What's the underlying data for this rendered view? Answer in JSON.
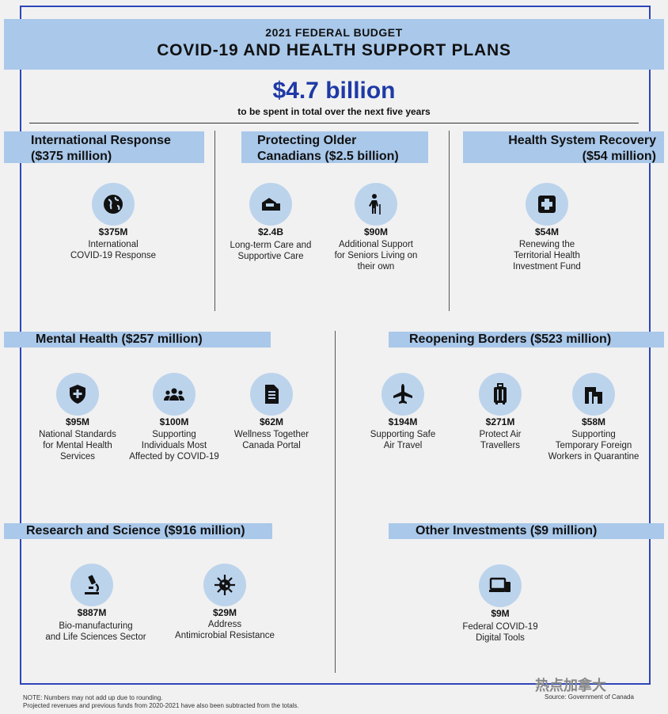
{
  "header": {
    "subtitle": "2021 FEDERAL BUDGET",
    "title": "COVID-19 AND HEALTH SUPPORT PLANS"
  },
  "total": {
    "amount": "$4.7 billion",
    "caption": "to be spent in total over the next five years"
  },
  "sections": {
    "international": {
      "line1": "International Response",
      "line2": "($375 million)",
      "items": [
        {
          "icon": "globe-icon",
          "amount": "$375M",
          "lines": [
            "International",
            "COVID-19 Response"
          ]
        }
      ]
    },
    "older": {
      "line1": "Protecting Older",
      "line2": "Canadians ($2.5 billion)",
      "items": [
        {
          "icon": "house-icon",
          "amount": "$2.4B",
          "lines": [
            "Long-term Care and",
            "Supportive Care"
          ]
        },
        {
          "icon": "elderly-person-icon",
          "amount": "$90M",
          "lines": [
            "Additional Support",
            "for Seniors Living on",
            "their own"
          ]
        }
      ]
    },
    "health_system": {
      "line1": "Health System Recovery",
      "line2": "($54 million)",
      "items": [
        {
          "icon": "medical-cross-icon",
          "amount": "$54M",
          "lines": [
            "Renewing the",
            "Territorial Health",
            "Investment Fund"
          ]
        }
      ]
    },
    "mental": {
      "title": "Mental Health ($257 million)",
      "items": [
        {
          "icon": "shield-plus-icon",
          "amount": "$95M",
          "lines": [
            "National Standards",
            "for Mental Health",
            "Services"
          ]
        },
        {
          "icon": "people-group-icon",
          "amount": "$100M",
          "lines": [
            "Supporting",
            "Individuals Most",
            "Affected by COVID-19"
          ]
        },
        {
          "icon": "document-icon",
          "amount": "$62M",
          "lines": [
            "Wellness Together",
            "Canada Portal"
          ]
        }
      ]
    },
    "borders": {
      "title": "Reopening Borders ($523 million)",
      "items": [
        {
          "icon": "airplane-icon",
          "amount": "$194M",
          "lines": [
            "Supporting Safe",
            "Air Travel"
          ]
        },
        {
          "icon": "luggage-icon",
          "amount": "$271M",
          "lines": [
            "Protect Air",
            "Travellers"
          ]
        },
        {
          "icon": "building-icon",
          "amount": "$58M",
          "lines": [
            "Supporting",
            "Temporary Foreign",
            "Workers in Quarantine"
          ]
        }
      ]
    },
    "research": {
      "title": "Research and Science ($916 million)",
      "items": [
        {
          "icon": "microscope-icon",
          "amount": "$887M",
          "lines": [
            "Bio-manufacturing",
            "and Life Sciences Sector"
          ]
        },
        {
          "icon": "virus-icon",
          "amount": "$29M",
          "lines": [
            "Address",
            "Antimicrobial Resistance"
          ]
        }
      ]
    },
    "other": {
      "title": "Other Investments ($9 million)",
      "items": [
        {
          "icon": "devices-icon",
          "amount": "$9M",
          "lines": [
            "Federal COVID-19",
            "Digital Tools"
          ]
        }
      ]
    }
  },
  "footer": {
    "note1": "NOTE: Numbers may not add up due to rounding.",
    "note2": "Projected revenues and previous funds from 2020-2021 have also been subtracted from the totals.",
    "watermark": "热点加拿大",
    "source": "Source: Government of Canada"
  },
  "colors": {
    "band": "#a9c8ea",
    "accent": "#1e3aa6",
    "frame": "#2e45b8",
    "icon_bg": "#bcd3ec"
  }
}
